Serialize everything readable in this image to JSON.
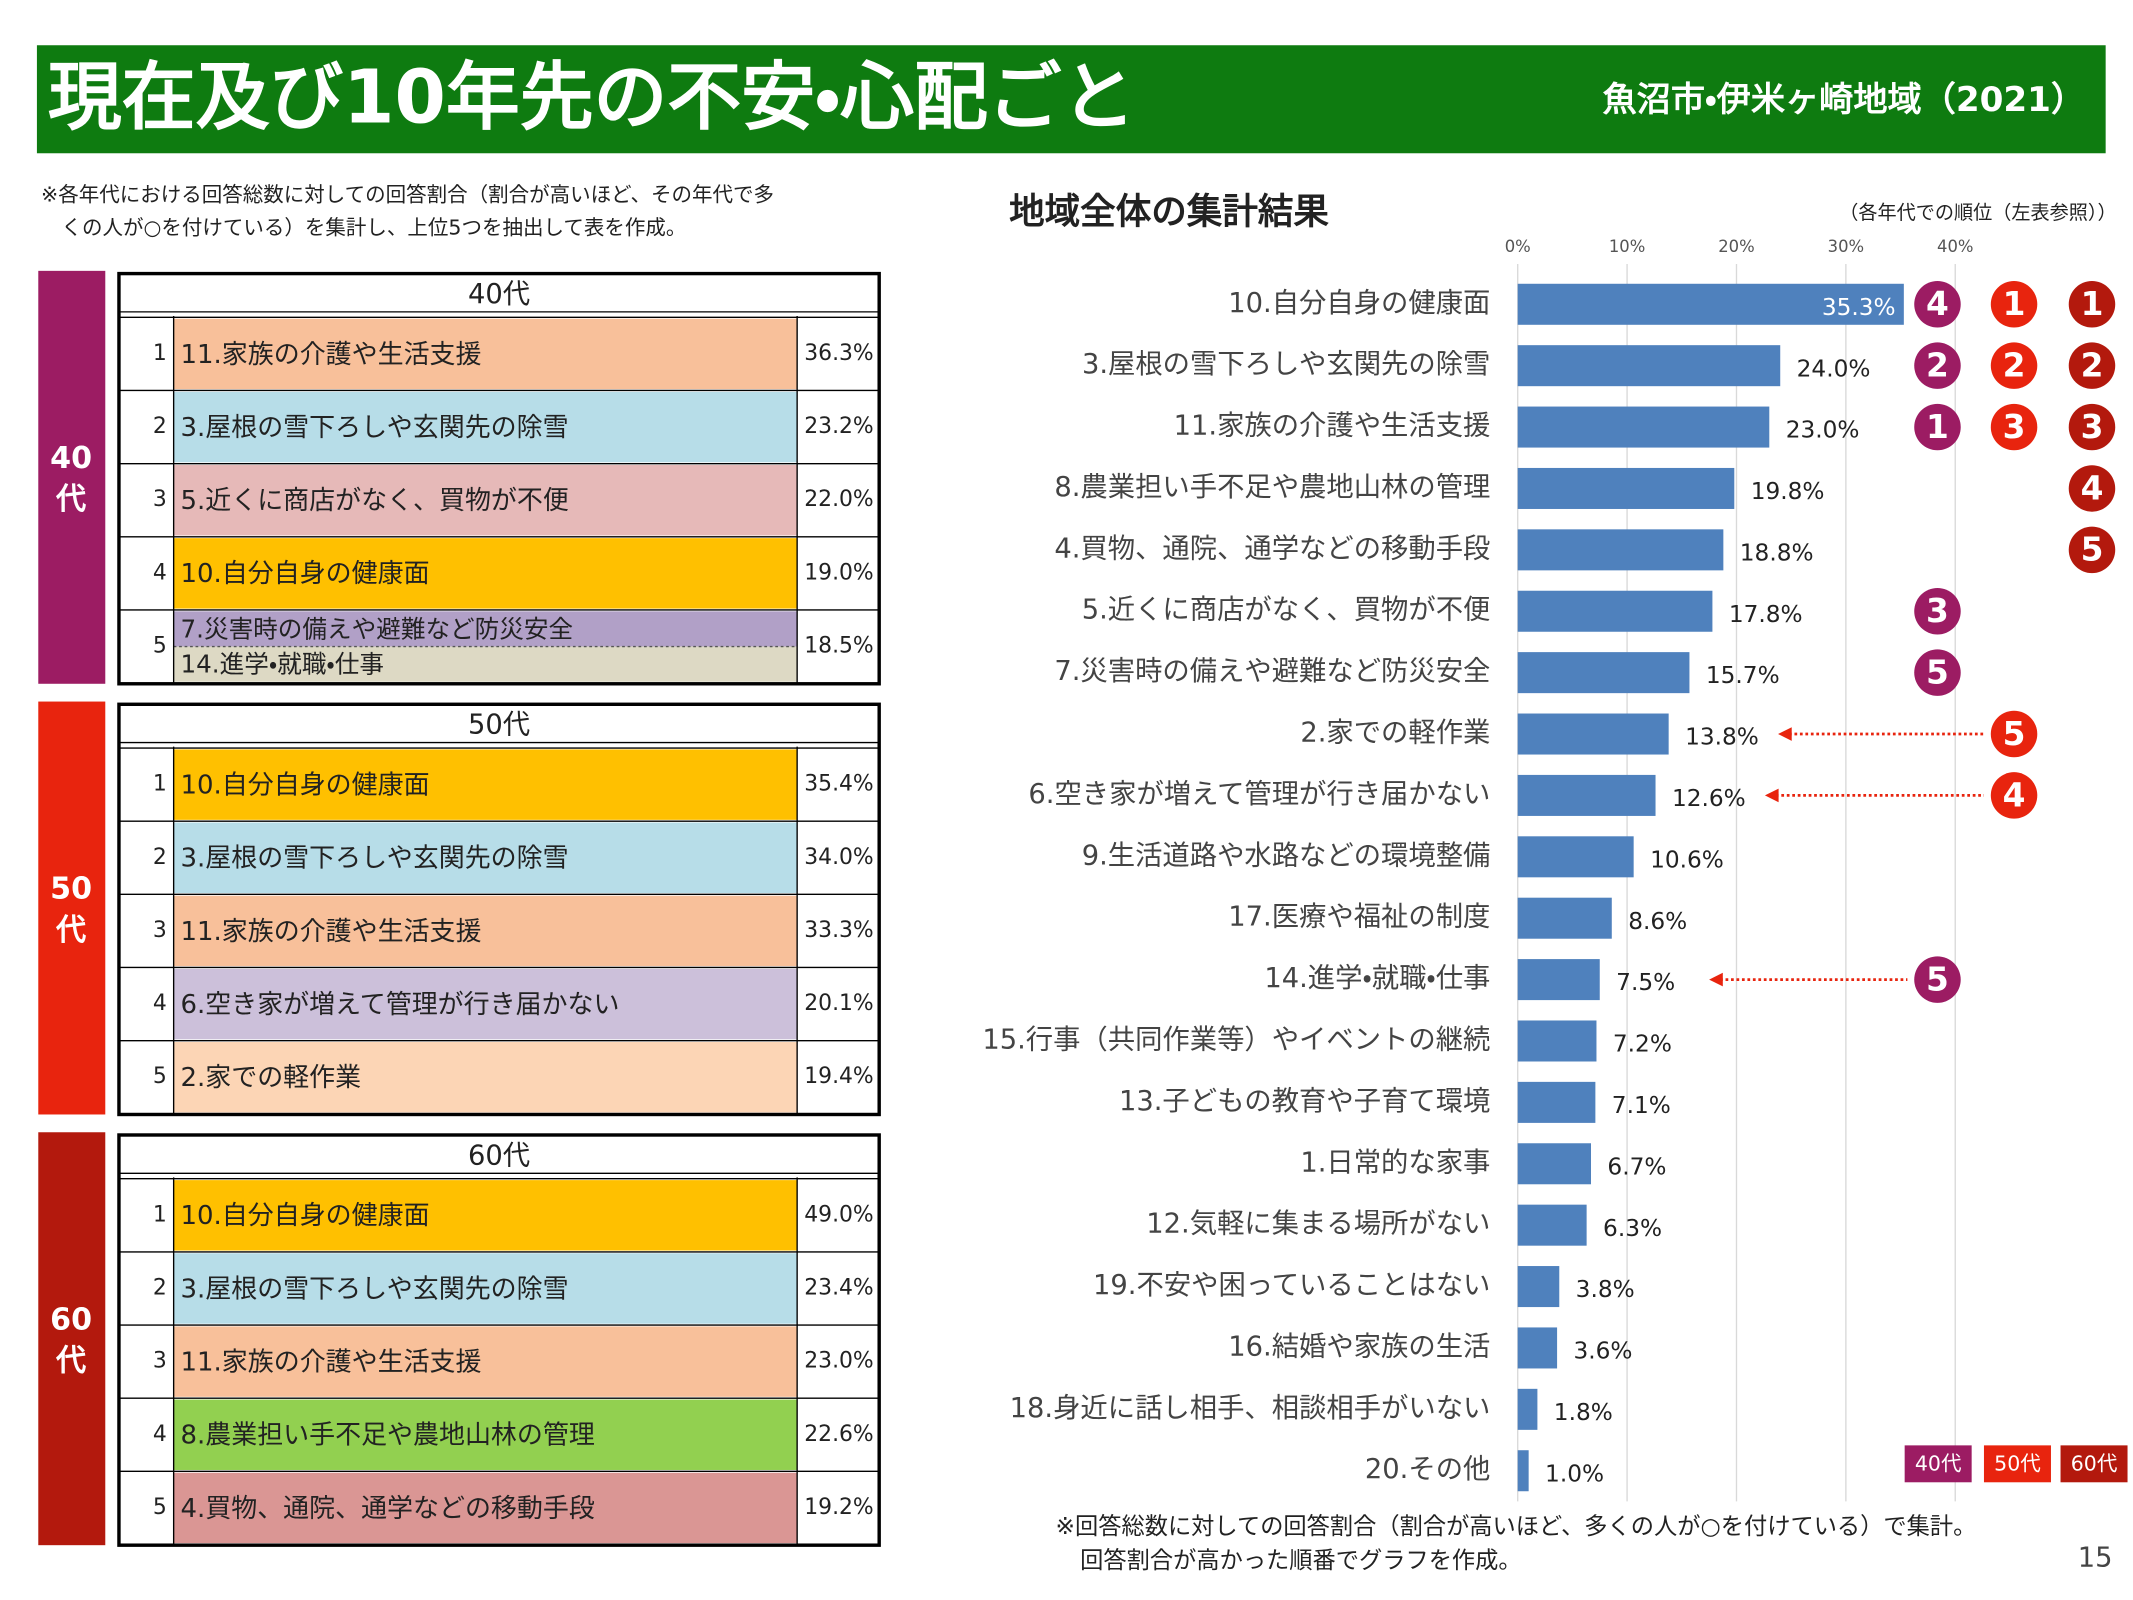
{
  "header": {
    "title": "現在及び10年先の不安・心配ごと",
    "region": "魚沼市・伊米ヶ崎地域（2021）",
    "color": "#0e7b10"
  },
  "note": [
    "※各年代における回答総数に対しての回答割合（割合が高いほど、その年代で多",
    "くの人が○を付けている）を集計し、上位5つを抽出して表を作成。"
  ],
  "age_tables": [
    {
      "side_label": [
        "40",
        "代"
      ],
      "header": "40代",
      "color": "#9c1c63",
      "rows": [
        {
          "rank": 1,
          "items": [
            "11.家族の介護や生活支援"
          ],
          "colors": [
            "#f8c09a"
          ],
          "value": "36.3%"
        },
        {
          "rank": 2,
          "items": [
            "3.屋根の雪下ろしや玄関先の除雪"
          ],
          "colors": [
            "#b7dde8"
          ],
          "value": "23.2%"
        },
        {
          "rank": 3,
          "items": [
            "5.近くに商店がなく、買物が不便"
          ],
          "colors": [
            "#e6b9b8"
          ],
          "value": "22.0%"
        },
        {
          "rank": 4,
          "items": [
            "10.自分自身の健康面"
          ],
          "colors": [
            "#ffc000"
          ],
          "value": "19.0%"
        },
        {
          "rank": 5,
          "items": [
            "7.災害時の備えや避難など防災安全",
            "14.進学・就職・仕事"
          ],
          "colors": [
            "#b1a0c7",
            "#ddd9c4"
          ],
          "value": "18.5%"
        }
      ]
    },
    {
      "side_label": [
        "50",
        "代"
      ],
      "header": "50代",
      "color": "#e8240e",
      "rows": [
        {
          "rank": 1,
          "items": [
            "10.自分自身の健康面"
          ],
          "colors": [
            "#ffc000"
          ],
          "value": "35.4%"
        },
        {
          "rank": 2,
          "items": [
            "3.屋根の雪下ろしや玄関先の除雪"
          ],
          "colors": [
            "#b7dde8"
          ],
          "value": "34.0%"
        },
        {
          "rank": 3,
          "items": [
            "11.家族の介護や生活支援"
          ],
          "colors": [
            "#f8c09a"
          ],
          "value": "33.3%"
        },
        {
          "rank": 4,
          "items": [
            "6.空き家が増えて管理が行き届かない"
          ],
          "colors": [
            "#ccc0da"
          ],
          "value": "20.1%"
        },
        {
          "rank": 5,
          "items": [
            "2.家での軽作業"
          ],
          "colors": [
            "#fcd5b5"
          ],
          "value": "19.4%"
        }
      ]
    },
    {
      "side_label": [
        "60",
        "代"
      ],
      "header": "60代",
      "color": "#b3190d",
      "rows": [
        {
          "rank": 1,
          "items": [
            "10.自分自身の健康面"
          ],
          "colors": [
            "#ffc000"
          ],
          "value": "49.0%"
        },
        {
          "rank": 2,
          "items": [
            "3.屋根の雪下ろしや玄関先の除雪"
          ],
          "colors": [
            "#b7dde8"
          ],
          "value": "23.4%"
        },
        {
          "rank": 3,
          "items": [
            "11.家族の介護や生活支援"
          ],
          "colors": [
            "#f8c09a"
          ],
          "value": "23.0%"
        },
        {
          "rank": 4,
          "items": [
            "8.農業担い手不足や農地山林の管理"
          ],
          "colors": [
            "#92d050"
          ],
          "value": "22.6%"
        },
        {
          "rank": 5,
          "items": [
            "4.買物、通院、通学などの移動手段"
          ],
          "colors": [
            "#da9694"
          ],
          "value": "19.2%"
        }
      ]
    }
  ],
  "chart_data": {
    "type": "bar",
    "orientation": "horizontal",
    "title": "地域全体の集計結果",
    "subtitle": "（各年代での順位（左表参照））",
    "categories": [
      "10.自分自身の健康面",
      "3.屋根の雪下ろしや玄関先の除雪",
      "11.家族の介護や生活支援",
      "8.農業担い手不足や農地山林の管理",
      "4.買物、通院、通学などの移動手段",
      "5.近くに商店がなく、買物が不便",
      "7.災害時の備えや避難など防災安全",
      "2.家での軽作業",
      "6.空き家が増えて管理が行き届かない",
      "9.生活道路や水路などの環境整備",
      "17.医療や福祉の制度",
      "14.進学・就職・仕事",
      "15.行事（共同作業等）やイベントの継続",
      "13.子どもの教育や子育て環境",
      "1.日常的な家事",
      "12.気軽に集まる場所がない",
      "19.不安や困っていることはない",
      "16.結婚や家族の生活",
      "18.身近に話し相手、相談相手がいない",
      "20.その他"
    ],
    "values": [
      35.3,
      24.0,
      23.0,
      19.8,
      18.8,
      17.8,
      15.7,
      13.8,
      12.6,
      10.6,
      8.6,
      7.5,
      7.2,
      7.1,
      6.7,
      6.3,
      3.8,
      3.6,
      1.8,
      1.0
    ],
    "value_labels": [
      "35.3%",
      "24.0%",
      "23.0%",
      "19.8%",
      "18.8%",
      "17.8%",
      "15.7%",
      "13.8%",
      "12.6%",
      "10.6%",
      "8.6%",
      "7.5%",
      "7.2%",
      "7.1%",
      "6.7%",
      "6.3%",
      "3.8%",
      "3.6%",
      "1.8%",
      "1.0%"
    ],
    "color": "#4f81bd",
    "xlim": [
      0,
      40
    ],
    "xticks": [
      {
        "value": 0,
        "label": "0%"
      },
      {
        "value": 10,
        "label": "10%"
      },
      {
        "value": 20,
        "label": "20%"
      },
      {
        "value": 30,
        "label": "30%"
      },
      {
        "value": 40,
        "label": "40%"
      }
    ],
    "grid": true,
    "rank_series": [
      {
        "name": "40代",
        "color": "#9c1c63",
        "ranks": [
          4,
          2,
          1,
          null,
          null,
          3,
          5,
          null,
          null,
          null,
          null,
          5,
          null,
          null,
          null,
          null,
          null,
          null,
          null,
          null
        ]
      },
      {
        "name": "50代",
        "color": "#e8240e",
        "ranks": [
          1,
          2,
          3,
          null,
          null,
          null,
          null,
          5,
          4,
          null,
          null,
          null,
          null,
          null,
          null,
          null,
          null,
          null,
          null,
          null
        ]
      },
      {
        "name": "60代",
        "color": "#b3190d",
        "ranks": [
          1,
          2,
          3,
          4,
          5,
          null,
          null,
          null,
          null,
          null,
          null,
          null,
          null,
          null,
          null,
          null,
          null,
          null,
          null,
          null
        ]
      }
    ]
  },
  "footnote": [
    "※回答総数に対しての回答割合（割合が高いほど、多くの人が○を付けている）で集計。",
    "回答割合が高かった順番でグラフを作成。"
  ],
  "page_number": "15"
}
